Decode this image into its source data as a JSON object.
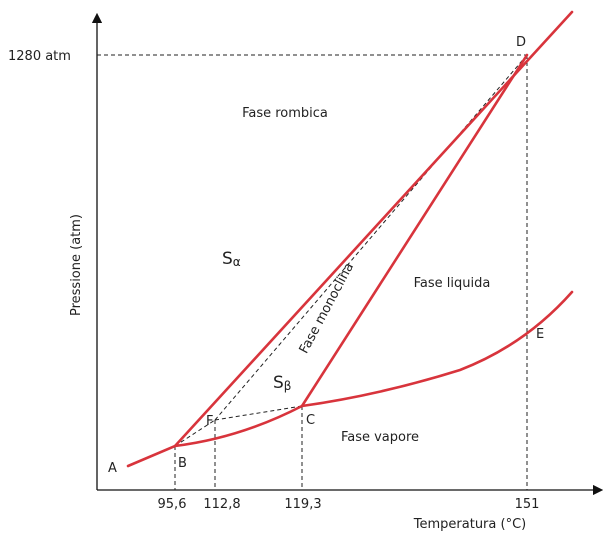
{
  "axes": {
    "y_label": "Pressione (atm)",
    "x_label": "Temperatura (°C)",
    "y_tick": "1280 atm",
    "x_ticks": [
      "95,6",
      "112,8",
      "119,3",
      "151"
    ]
  },
  "points": [
    "A",
    "B",
    "F",
    "C",
    "D",
    "E"
  ],
  "regions": {
    "rombica": "Fase rombica",
    "monoclina": "Fase monoclina",
    "liquida": "Fase liquida",
    "vapore": "Fase vapore",
    "s_alpha": {
      "symbol": "S",
      "sub": "α"
    },
    "s_beta": {
      "symbol": "S",
      "sub": "β"
    }
  }
}
